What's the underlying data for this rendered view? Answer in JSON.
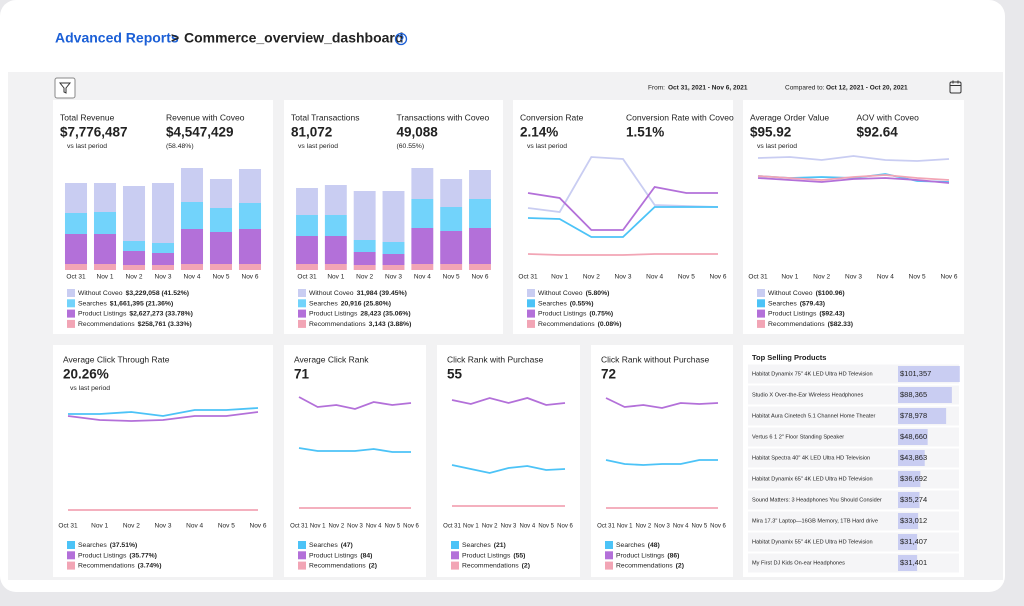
{
  "header": {
    "breadcrumb": "Advanced Reports",
    "separator": ">",
    "title": "Commerce_overview_dashboard"
  },
  "filters": {
    "from_label": "From:",
    "from_value": "Oct 31, 2021 - Nov 6, 2021",
    "compare_label": "Compared to:",
    "compare_value": "Oct 12, 2021 - Oct 20, 2021"
  },
  "chart_data": [
    {
      "type": "stacked_bar",
      "kpis": [
        {
          "label": "Total Revenue",
          "value": "$7,776,487",
          "note": "vs last period"
        },
        {
          "label": "Revenue with Coveo",
          "value": "$4,547,429",
          "note": "(58.48%)"
        }
      ],
      "categories": [
        "Oct 31",
        "Nov 1",
        "Nov 2",
        "Nov 3",
        "Nov 4",
        "Nov 5",
        "Nov 6"
      ],
      "ylim": [
        0,
        120
      ],
      "series": [
        {
          "name": "Without Coveo",
          "legend_value": "$3,229,058 (41.52%)",
          "color": "#c9cdf2",
          "values": [
            30,
            29,
            55,
            60,
            34,
            29,
            34
          ]
        },
        {
          "name": "Searches",
          "legend_value": "$1,661,395 (21.36%)",
          "color": "#72d3fb",
          "values": [
            21,
            22,
            10,
            10,
            27,
            24,
            26
          ]
        },
        {
          "name": "Product Listings",
          "legend_value": "$2,627,273 (33.78%)",
          "color": "#b370d9",
          "values": [
            30,
            30,
            14,
            12,
            35,
            32,
            35
          ]
        },
        {
          "name": "Recommendations",
          "legend_value": "$258,761 (3.33%)",
          "color": "#f2a5b5",
          "values": [
            6,
            6,
            5,
            5,
            6,
            6,
            6
          ]
        }
      ]
    },
    {
      "type": "stacked_bar",
      "kpis": [
        {
          "label": "Total Transactions",
          "value": "81,072",
          "note": "vs last period"
        },
        {
          "label": "Transactions with Coveo",
          "value": "49,088",
          "note": "(60.55%)"
        }
      ],
      "categories": [
        "Oct 31",
        "Nov 1",
        "Nov 2",
        "Nov 3",
        "Nov 4",
        "Nov 5",
        "Nov 6"
      ],
      "ylim": [
        0,
        120
      ],
      "series": [
        {
          "name": "Without Coveo",
          "legend_value": "31,984 (39.45%)",
          "color": "#c9cdf2",
          "values": [
            27,
            30,
            49,
            51,
            31,
            28,
            29
          ]
        },
        {
          "name": "Searches",
          "legend_value": "20,916 (25.80%)",
          "color": "#72d3fb",
          "values": [
            21,
            21,
            12,
            12,
            29,
            24,
            29
          ]
        },
        {
          "name": "Product Listings",
          "legend_value": "28,423 (35.06%)",
          "color": "#b370d9",
          "values": [
            28,
            28,
            13,
            11,
            36,
            33,
            36
          ]
        },
        {
          "name": "Recommendations",
          "legend_value": "3,143 (3.88%)",
          "color": "#f2a5b5",
          "values": [
            6,
            6,
            5,
            5,
            6,
            6,
            6
          ]
        }
      ]
    },
    {
      "type": "line",
      "kpis": [
        {
          "label": "Conversion Rate",
          "value": "2.14%",
          "note": "vs last period"
        },
        {
          "label": "Conversion Rate with Coveo",
          "value": "1.51%"
        }
      ],
      "categories": [
        "Oct 31",
        "Nov 1",
        "Nov 2",
        "Nov 3",
        "Nov 4",
        "Nov 5",
        "Nov 6"
      ],
      "ylim": [
        0,
        120
      ],
      "series": [
        {
          "name": "Without Coveo",
          "legend_value": "(5.80%)",
          "color": "#c9cdf2",
          "values": [
            62,
            58,
            113,
            111,
            65,
            64,
            63
          ]
        },
        {
          "name": "Searches",
          "legend_value": "(0.55%)",
          "color": "#4cc3f7",
          "values": [
            52,
            51,
            33,
            33,
            63,
            63,
            63
          ]
        },
        {
          "name": "Product Listings",
          "legend_value": "(0.75%)",
          "color": "#b370d9",
          "values": [
            77,
            72,
            40,
            40,
            83,
            77,
            77
          ]
        },
        {
          "name": "Recommendations",
          "legend_value": "(0.08%)",
          "color": "#f2a5b5",
          "values": [
            16,
            15,
            15,
            15,
            16,
            16,
            16
          ]
        }
      ]
    },
    {
      "type": "line",
      "kpis": [
        {
          "label": "Average Order Value",
          "value": "$95.92",
          "note": "vs last period"
        },
        {
          "label": "AOV with Coveo",
          "value": "$92.64"
        }
      ],
      "categories": [
        "Oct 31",
        "Nov 1",
        "Nov 2",
        "Nov 3",
        "Nov 4",
        "Nov 5",
        "Nov 6"
      ],
      "ylim": [
        0,
        120
      ],
      "series": [
        {
          "name": "Without Coveo",
          "legend_value": "($100.96)",
          "color": "#c9cdf2",
          "values": [
            112,
            113,
            110,
            114,
            110,
            109,
            111
          ]
        },
        {
          "name": "Searches",
          "legend_value": "($79.43)",
          "color": "#4cc3f7",
          "values": [
            94,
            92,
            93,
            92,
            96,
            89,
            88
          ]
        },
        {
          "name": "Product Listings",
          "legend_value": "($92.43)",
          "color": "#b370d9",
          "values": [
            92,
            90,
            88,
            91,
            92,
            90,
            87
          ]
        },
        {
          "name": "Recommendations",
          "legend_value": "($82.33)",
          "color": "#f2a5b5",
          "values": [
            94,
            92,
            90,
            93,
            95,
            92,
            90
          ]
        }
      ]
    },
    {
      "type": "line",
      "kpis": [
        {
          "label": "Average Click Through Rate",
          "value": "20.26%",
          "note": "vs last period"
        }
      ],
      "categories": [
        "Oct 31",
        "Nov 1",
        "Nov 2",
        "Nov 3",
        "Nov 4",
        "Nov 5",
        "Nov 6"
      ],
      "ylim": [
        0,
        130
      ],
      "series": [
        {
          "name": "Searches",
          "legend_value": "(37.51%)",
          "color": "#4cc3f7",
          "values": [
            106,
            106,
            108,
            104,
            110,
            110,
            112
          ]
        },
        {
          "name": "Product Listings",
          "legend_value": "(35.77%)",
          "color": "#b370d9",
          "values": [
            104,
            100,
            99,
            100,
            104,
            104,
            108
          ]
        },
        {
          "name": "Recommendations",
          "legend_value": "(3.74%)",
          "color": "#f2a5b5",
          "values": [
            10,
            10,
            10,
            10,
            10,
            10,
            10
          ]
        }
      ]
    },
    {
      "type": "line",
      "kpis": [
        {
          "label": "Average Click Rank",
          "value": "71"
        }
      ],
      "categories": [
        "Oct 31",
        "Nov 1",
        "Nov 2",
        "Nov 3",
        "Nov 4",
        "Nov 5",
        "Nov 6"
      ],
      "ylim": [
        0,
        130
      ],
      "series": [
        {
          "name": "Searches",
          "legend_value": "(47)",
          "color": "#4cc3f7",
          "values": [
            72,
            69,
            69,
            69,
            71,
            68,
            68
          ]
        },
        {
          "name": "Product Listings",
          "legend_value": "(84)",
          "color": "#b370d9",
          "values": [
            123,
            113,
            115,
            111,
            118,
            115,
            117
          ]
        },
        {
          "name": "Recommendations",
          "legend_value": "(2)",
          "color": "#f2a5b5",
          "values": [
            12,
            12,
            12,
            12,
            12,
            12,
            12
          ]
        }
      ]
    },
    {
      "type": "line",
      "kpis": [
        {
          "label": "Click Rank with Purchase",
          "value": "55"
        }
      ],
      "categories": [
        "Oct 31",
        "Nov 1",
        "Nov 2",
        "Nov 3",
        "Nov 4",
        "Nov 5",
        "Nov 6"
      ],
      "ylim": [
        0,
        130
      ],
      "series": [
        {
          "name": "Searches",
          "legend_value": "(21)",
          "color": "#4cc3f7",
          "values": [
            55,
            51,
            47,
            52,
            54,
            50,
            51
          ]
        },
        {
          "name": "Product Listings",
          "legend_value": "(55)",
          "color": "#b370d9",
          "values": [
            120,
            116,
            122,
            117,
            122,
            115,
            117
          ]
        },
        {
          "name": "Recommendations",
          "legend_value": "(2)",
          "color": "#f2a5b5",
          "values": [
            14,
            14,
            14,
            14,
            14,
            14,
            14
          ]
        }
      ]
    },
    {
      "type": "line",
      "kpis": [
        {
          "label": "Click Rank without Purchase",
          "value": "72"
        }
      ],
      "categories": [
        "Oct 31",
        "Nov 1",
        "Nov 2",
        "Nov 3",
        "Nov 4",
        "Nov 5",
        "Nov 6"
      ],
      "ylim": [
        0,
        130
      ],
      "series": [
        {
          "name": "Searches",
          "legend_value": "(48)",
          "color": "#4cc3f7",
          "values": [
            60,
            56,
            55,
            56,
            56,
            60,
            60
          ]
        },
        {
          "name": "Product Listings",
          "legend_value": "(86)",
          "color": "#b370d9",
          "values": [
            122,
            113,
            115,
            112,
            117,
            116,
            117
          ]
        },
        {
          "name": "Recommendations",
          "legend_value": "(2)",
          "color": "#f2a5b5",
          "values": [
            12,
            12,
            12,
            12,
            12,
            12,
            12
          ]
        }
      ]
    },
    {
      "type": "hbar",
      "title": "Top Selling Products",
      "color": "#c9cdf2",
      "xlim": [
        0,
        105000
      ],
      "categories": [
        "Habitat Dynamix 75\" 4K LED Ultra HD Television",
        "Studio X Over-the-Ear Wireless Headphones",
        "Habitat Aura Cinetech 5.1 Channel Home Theater",
        "Vertus 6 1 2\" Floor Standing Speaker",
        "Habitat Spectra 40\" 4K LED Ultra HD Television",
        "Habitat Dynamix 65\" 4K LED Ultra HD Television",
        "Sound Matters: 3 Headphones You Should Consider",
        "Mira 17.3\" Laptop—16GB Memory, 1TB Hard drive",
        "Habitat Dynamix 55\" 4K LED Ultra HD Television",
        "My First DJ Kids On-ear Headphones"
      ],
      "values": [
        101357,
        88365,
        78978,
        48660,
        43863,
        36692,
        35274,
        33012,
        31407,
        31401
      ],
      "value_labels": [
        "$101,357",
        "$88,365",
        "$78,978",
        "$48,660",
        "$43,863",
        "$36,692",
        "$35,274",
        "$33,012",
        "$31,407",
        "$31,401"
      ]
    }
  ]
}
